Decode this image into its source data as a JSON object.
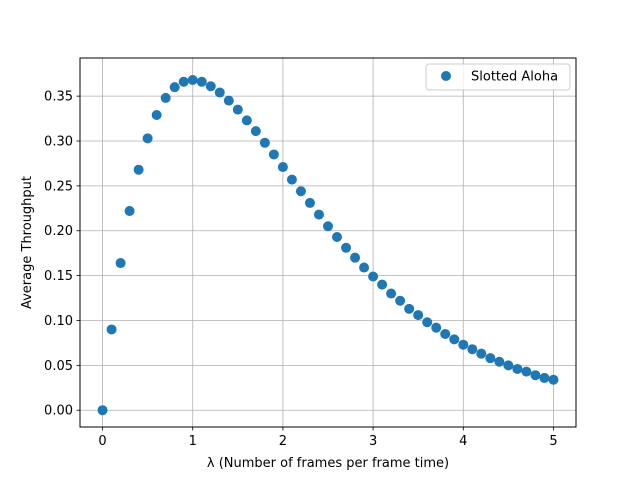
{
  "chart_data": {
    "type": "scatter",
    "xlabel": "λ (Number of frames per frame time)",
    "ylabel": "Average Throughput",
    "xlim": [
      -0.25,
      5.25
    ],
    "ylim": [
      -0.0187,
      0.3925
    ],
    "xticks": [
      0,
      1,
      2,
      3,
      4,
      5
    ],
    "yticks": [
      0.0,
      0.05,
      0.1,
      0.15,
      0.2,
      0.25,
      0.3,
      0.35
    ],
    "xtick_labels": [
      "0",
      "1",
      "2",
      "3",
      "4",
      "5"
    ],
    "ytick_labels": [
      "0.00",
      "0.05",
      "0.10",
      "0.15",
      "0.20",
      "0.25",
      "0.30",
      "0.35"
    ],
    "grid": true,
    "legend_position": "top-right",
    "series": [
      {
        "name": "Slotted Aloha",
        "color": "#1f77b4",
        "marker": "circle",
        "x": [
          0.0,
          0.1,
          0.2,
          0.3,
          0.4,
          0.5,
          0.6,
          0.7,
          0.8,
          0.9,
          1.0,
          1.1,
          1.2,
          1.3,
          1.4,
          1.5,
          1.6,
          1.7,
          1.8,
          1.9,
          2.0,
          2.1,
          2.2,
          2.3,
          2.4,
          2.5,
          2.6,
          2.7,
          2.8,
          2.9,
          3.0,
          3.1,
          3.2,
          3.3,
          3.4,
          3.5,
          3.6,
          3.7,
          3.8,
          3.9,
          4.0,
          4.1,
          4.2,
          4.3,
          4.4,
          4.5,
          4.6,
          4.7,
          4.8,
          4.9,
          5.0
        ],
        "y": [
          0.0,
          0.09,
          0.164,
          0.222,
          0.268,
          0.303,
          0.329,
          0.348,
          0.36,
          0.366,
          0.368,
          0.366,
          0.361,
          0.354,
          0.345,
          0.335,
          0.323,
          0.311,
          0.298,
          0.285,
          0.271,
          0.257,
          0.244,
          0.231,
          0.218,
          0.205,
          0.193,
          0.181,
          0.17,
          0.159,
          0.149,
          0.14,
          0.13,
          0.122,
          0.113,
          0.106,
          0.098,
          0.092,
          0.085,
          0.079,
          0.073,
          0.068,
          0.063,
          0.058,
          0.054,
          0.05,
          0.046,
          0.043,
          0.039,
          0.036,
          0.034
        ]
      }
    ]
  }
}
